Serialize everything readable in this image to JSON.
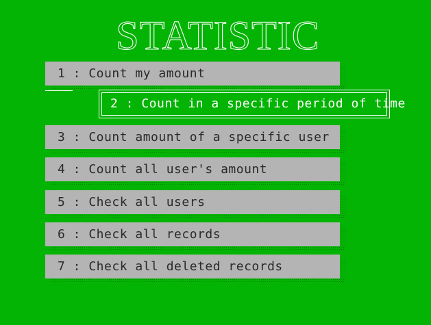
{
  "title": "STATISTIC",
  "menu": {
    "items": [
      {
        "label": "1 : Count my amount"
      },
      {
        "label": "2 : Count in a specific period of time"
      },
      {
        "label": "3 : Count amount of a specific user"
      },
      {
        "label": "4 : Count all user's amount"
      },
      {
        "label": "5 : Check all users"
      },
      {
        "label": "6 : Check all records"
      },
      {
        "label": "7 : Check all deleted records"
      }
    ],
    "selected_index": 1
  },
  "colors": {
    "background": "#04b404",
    "item_background": "#b4b4b4",
    "item_text": "#2a2a2a",
    "selected_text": "#ffffff"
  }
}
